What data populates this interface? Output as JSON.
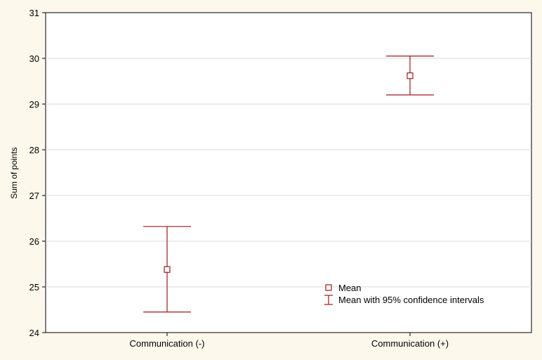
{
  "chart_data": {
    "type": "errorbar",
    "title": "",
    "xlabel": "",
    "ylabel": "Sum of points",
    "ylim": [
      24,
      31
    ],
    "yticks": [
      24,
      25,
      26,
      27,
      28,
      29,
      30,
      31
    ],
    "categories": [
      "Communication (-)",
      "Communication (+)"
    ],
    "series": [
      {
        "name": "Mean",
        "values": [
          25.38,
          29.62
        ],
        "ci_lower": [
          24.45,
          29.2
        ],
        "ci_upper": [
          26.32,
          30.05
        ]
      }
    ],
    "grid": "horizontal",
    "legend": {
      "position": "bottom-right",
      "entries": [
        "Mean",
        "Mean with 95% confidence intervals"
      ]
    },
    "colors": {
      "series": "#9b1c1c",
      "grid": "#d8d8d8",
      "background": "#fdf8ec",
      "plot_background": "#ffffff"
    }
  }
}
